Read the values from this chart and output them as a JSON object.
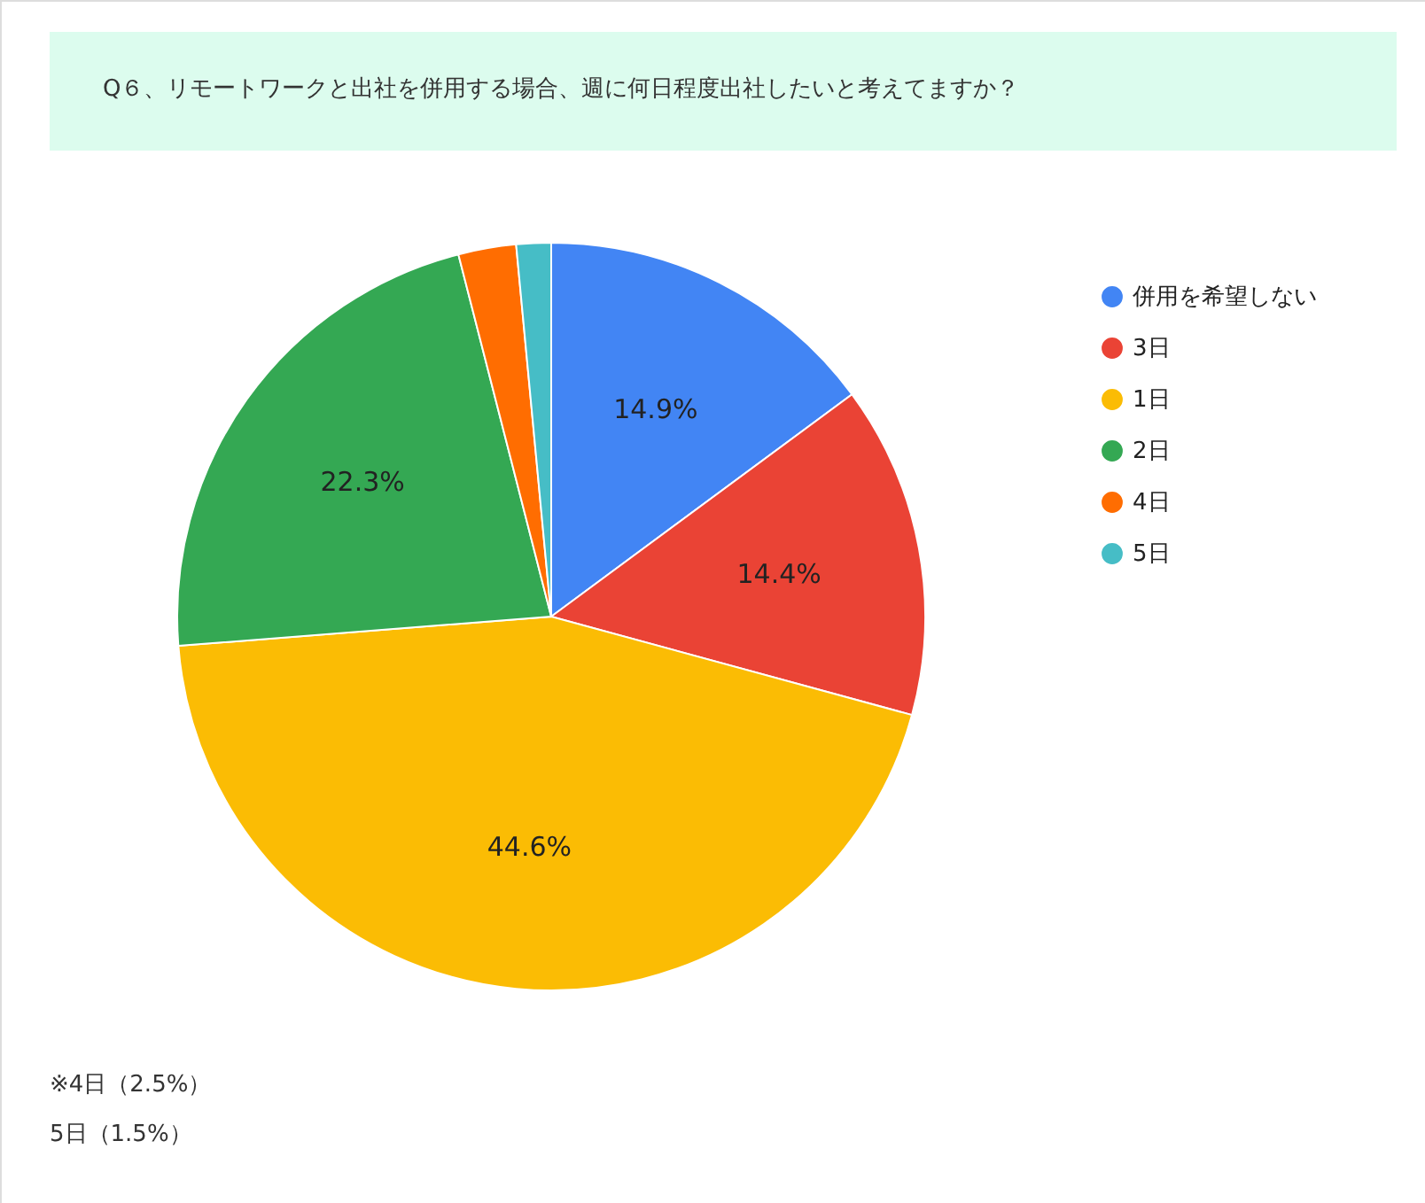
{
  "chart_data": {
    "type": "pie",
    "title": "Q６、リモートワークと出社を併用する場合、週に何日程度出社したいと考えてますか？",
    "categories": [
      "併用を希望しない",
      "3日",
      "1日",
      "2日",
      "4日",
      "5日"
    ],
    "values": [
      14.9,
      14.4,
      44.6,
      22.3,
      2.5,
      1.5
    ],
    "colors": [
      "#4285f4",
      "#ea4335",
      "#fbbc04",
      "#34a853",
      "#ff6d01",
      "#46bdc6"
    ],
    "value_labels": [
      "14.9%",
      "14.4%",
      "44.6%",
      "22.3%",
      null,
      null
    ],
    "legend": "right",
    "annotations": [
      "※4日（2.5%）",
      "　5日（1.5%）"
    ]
  }
}
